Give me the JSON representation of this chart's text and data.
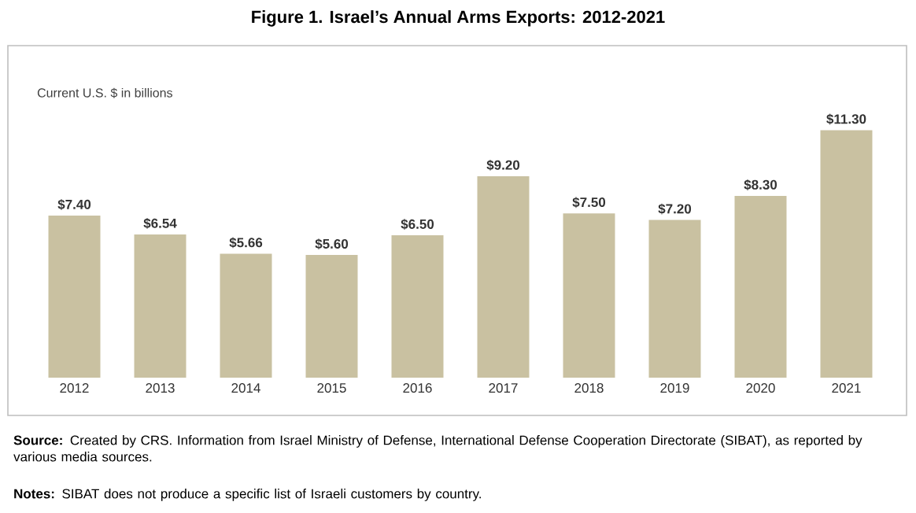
{
  "chart_data": {
    "type": "bar",
    "title": "Figure 1. Israel’s Annual Arms Exports: 2012-2021",
    "ylabel": "Current U.S. $ in billions",
    "categories": [
      "2012",
      "2013",
      "2014",
      "2015",
      "2016",
      "2017",
      "2018",
      "2019",
      "2020",
      "2021"
    ],
    "values": [
      7.4,
      6.54,
      5.66,
      5.6,
      6.5,
      9.2,
      7.5,
      7.2,
      8.3,
      11.3
    ],
    "value_labels": [
      "$7.40",
      "$6.54",
      "$5.66",
      "$5.60",
      "$6.50",
      "$9.20",
      "$7.50",
      "$7.20",
      "$8.30",
      "$11.30"
    ],
    "color": "#c9c1a1",
    "annotations": [
      "**Source:** Created by CRS. Information from Israel Ministry of Defense, International Defense Cooperation Directorate (SIBAT), as reported by various media sources.",
      "**Notes:** SIBAT does not produce a specific list of Israeli customers by country."
    ]
  }
}
